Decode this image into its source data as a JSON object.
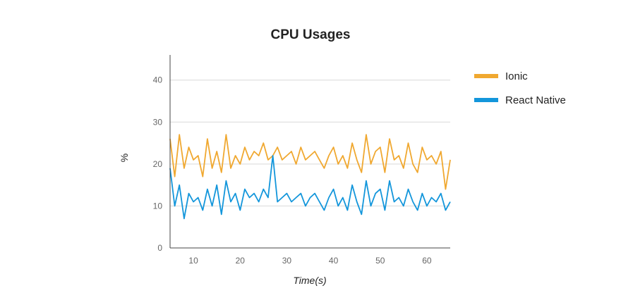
{
  "chart_data": {
    "type": "line",
    "title": "CPU Usages",
    "xlabel": "Time(s)",
    "ylabel": "%",
    "xlim": [
      5,
      65
    ],
    "ylim": [
      0,
      46
    ],
    "x_ticks": [
      10,
      20,
      30,
      40,
      50,
      60
    ],
    "y_ticks": [
      0,
      10,
      20,
      30,
      40
    ],
    "grid": true,
    "legend_position": "right",
    "x": [
      5,
      6,
      7,
      8,
      9,
      10,
      11,
      12,
      13,
      14,
      15,
      16,
      17,
      18,
      19,
      20,
      21,
      22,
      23,
      24,
      25,
      26,
      27,
      28,
      29,
      30,
      31,
      32,
      33,
      34,
      35,
      36,
      37,
      38,
      39,
      40,
      41,
      42,
      43,
      44,
      45,
      46,
      47,
      48,
      49,
      50,
      51,
      52,
      53,
      54,
      55,
      56,
      57,
      58,
      59,
      60,
      61,
      62,
      63,
      64,
      65
    ],
    "series": [
      {
        "name": "Ionic",
        "color": "#f0a830",
        "values": [
          26,
          17,
          27,
          19,
          24,
          21,
          22,
          17,
          26,
          19,
          23,
          18,
          27,
          19,
          22,
          20,
          24,
          21,
          23,
          22,
          25,
          21,
          22,
          24,
          21,
          22,
          23,
          20,
          24,
          21,
          22,
          23,
          21,
          19,
          22,
          24,
          20,
          22,
          19,
          25,
          21,
          18,
          27,
          20,
          23,
          24,
          18,
          26,
          21,
          22,
          19,
          25,
          20,
          18,
          24,
          21,
          22,
          20,
          23,
          14,
          21
        ]
      },
      {
        "name": "React Native",
        "color": "#1396db",
        "values": [
          19,
          10,
          15,
          7,
          13,
          11,
          12,
          9,
          14,
          10,
          15,
          8,
          16,
          11,
          13,
          9,
          14,
          12,
          13,
          11,
          14,
          12,
          22,
          11,
          12,
          13,
          11,
          12,
          13,
          10,
          12,
          13,
          11,
          9,
          12,
          14,
          10,
          12,
          9,
          15,
          11,
          8,
          16,
          10,
          13,
          14,
          9,
          16,
          11,
          12,
          10,
          14,
          11,
          9,
          13,
          10,
          12,
          11,
          13,
          9,
          11
        ]
      }
    ]
  }
}
